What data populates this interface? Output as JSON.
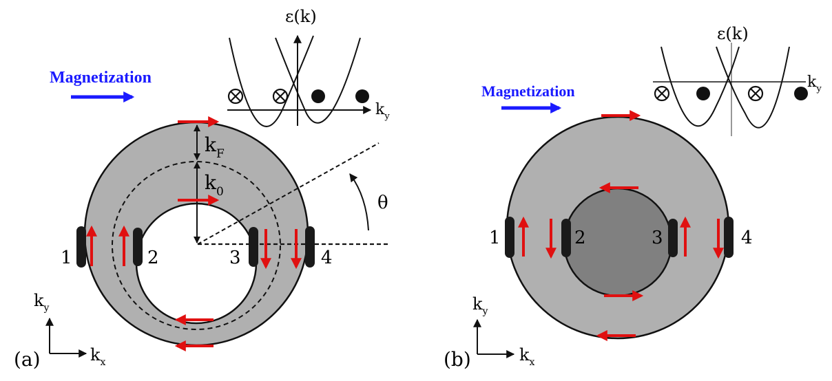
{
  "panel_a": {
    "label": "(a)",
    "magnetization": "Magnetization",
    "inset": {
      "y_axis": "ε(k)",
      "x_axis": "k",
      "x_axis_sub": "y"
    },
    "k_F": "k",
    "k_F_sub": "F",
    "k_0": "k",
    "k_0_sub": "0",
    "theta": "θ",
    "contacts": [
      "1",
      "2",
      "3",
      "4"
    ],
    "axes": {
      "ky": "k",
      "ky_sub": "y",
      "kx": "k",
      "kx_sub": "x"
    }
  },
  "panel_b": {
    "label": "(b)",
    "magnetization": "Magnetization",
    "inset": {
      "y_axis": "ε(k)",
      "x_axis": "k",
      "x_axis_sub": "y"
    },
    "contacts": [
      "1",
      "2",
      "3",
      "4"
    ],
    "axes": {
      "ky": "k",
      "ky_sub": "y",
      "kx": "k",
      "kx_sub": "x"
    }
  },
  "colors": {
    "outer_ring": "#b0b0b0",
    "inner_disk_b": "#808080",
    "arrow_red": "#e01010",
    "magnetization_blue": "#1a1aff",
    "contact_black": "#1a1a1a"
  }
}
